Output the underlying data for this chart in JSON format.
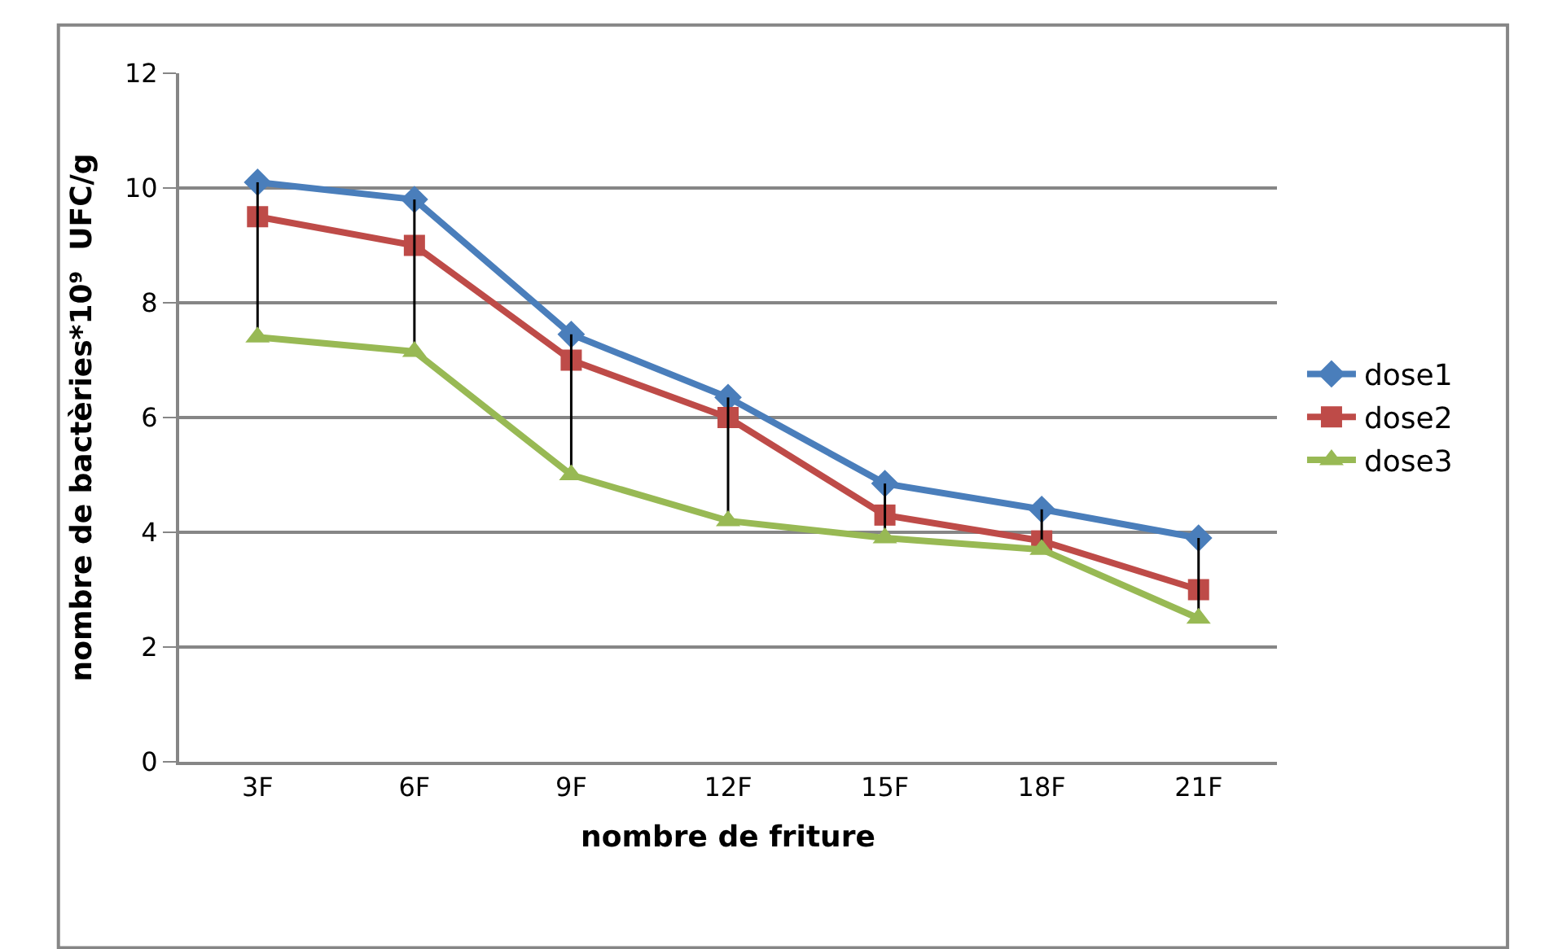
{
  "chart_data": {
    "type": "line",
    "xlabel": "nombre de friture",
    "ylabel": "nombre de bactèries*10⁹  UFC/g",
    "categories": [
      "3F",
      "6F",
      "9F",
      "12F",
      "15F",
      "18F",
      "21F"
    ],
    "series": [
      {
        "name": "dose1",
        "color": "#4a7ebb",
        "marker": "diamond",
        "values": [
          10.1,
          9.8,
          7.45,
          6.35,
          4.85,
          4.4,
          3.9
        ]
      },
      {
        "name": "dose2",
        "color": "#be4b48",
        "marker": "square",
        "values": [
          9.5,
          9.0,
          7.0,
          6.0,
          4.3,
          3.85,
          3.0
        ]
      },
      {
        "name": "dose3",
        "color": "#98b954",
        "marker": "triangle",
        "values": [
          7.4,
          7.15,
          5.0,
          4.2,
          3.9,
          3.7,
          2.5
        ],
        "errors": [
          [
            7.4,
            10.1
          ],
          [
            7.15,
            9.8
          ],
          [
            5.0,
            7.45
          ],
          [
            4.2,
            6.35
          ],
          [
            3.9,
            4.85
          ],
          [
            3.7,
            4.4
          ],
          [
            2.5,
            3.9
          ]
        ]
      }
    ],
    "ylim": [
      0,
      12
    ],
    "yticks": [
      0,
      2,
      4,
      6,
      8,
      10,
      12
    ],
    "grid": "y",
    "legend": "right",
    "line_style": "solid"
  }
}
